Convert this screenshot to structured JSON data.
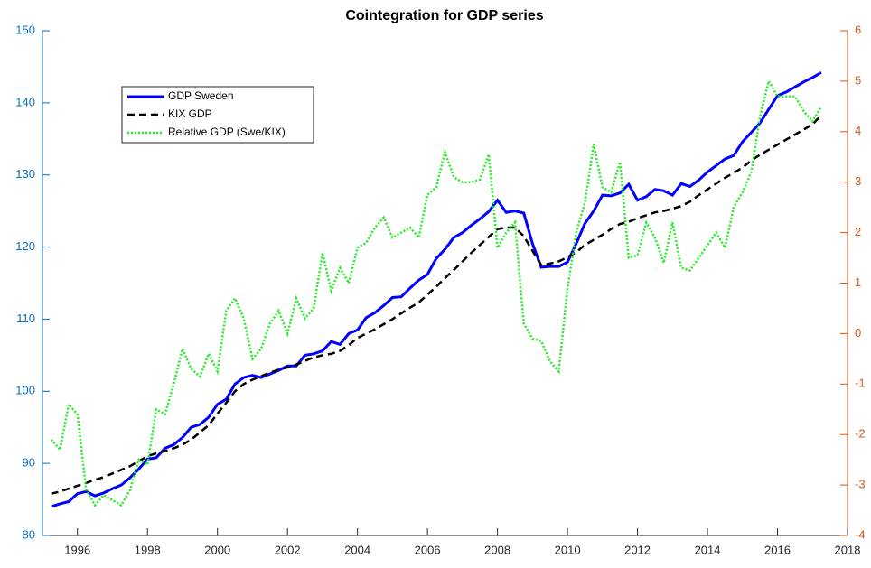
{
  "chart_data": {
    "type": "line",
    "title": "Cointegration for GDP series",
    "x": [
      1995.25,
      1995.5,
      1995.75,
      1996,
      1996.25,
      1996.5,
      1996.75,
      1997,
      1997.25,
      1997.5,
      1997.75,
      1998,
      1998.25,
      1998.5,
      1998.75,
      1999,
      1999.25,
      1999.5,
      1999.75,
      2000,
      2000.25,
      2000.5,
      2000.75,
      2001,
      2001.25,
      2001.5,
      2001.75,
      2002,
      2002.25,
      2002.5,
      2002.75,
      2003,
      2003.25,
      2003.5,
      2003.75,
      2004,
      2004.25,
      2004.5,
      2004.75,
      2005,
      2005.25,
      2005.5,
      2005.75,
      2006,
      2006.25,
      2006.5,
      2006.75,
      2007,
      2007.25,
      2007.5,
      2007.75,
      2008,
      2008.25,
      2008.5,
      2008.75,
      2009,
      2009.25,
      2009.5,
      2009.75,
      2010,
      2010.25,
      2010.5,
      2010.75,
      2011,
      2011.25,
      2011.5,
      2011.75,
      2012,
      2012.25,
      2012.5,
      2012.75,
      2013,
      2013.25,
      2013.5,
      2013.75,
      2014,
      2014.25,
      2014.5,
      2014.75,
      2015,
      2015.25,
      2015.5,
      2015.75,
      2016,
      2016.25,
      2016.5,
      2016.75,
      2017,
      2017.25
    ],
    "series": [
      {
        "name": "GDP Sweden",
        "color": "#0000ff",
        "line_style": "solid",
        "axis": "y",
        "values": [
          84.0,
          84.4,
          84.7,
          85.8,
          86.1,
          85.5,
          85.9,
          86.5,
          87.0,
          88.0,
          89.2,
          90.6,
          90.8,
          92.1,
          92.6,
          93.6,
          95.0,
          95.4,
          96.4,
          98.2,
          98.9,
          101.0,
          101.9,
          102.2,
          101.9,
          102.4,
          102.9,
          103.5,
          103.5,
          105.0,
          105.2,
          105.6,
          106.9,
          106.5,
          108.0,
          108.5,
          110.2,
          110.9,
          111.9,
          113.0,
          113.1,
          114.3,
          115.4,
          116.2,
          118.4,
          119.7,
          121.3,
          122.0,
          123.0,
          123.9,
          124.9,
          126.5,
          124.8,
          125.0,
          124.7,
          120.5,
          117.2,
          117.3,
          117.3,
          117.9,
          120.5,
          123.3,
          125.0,
          127.2,
          127.1,
          127.5,
          128.7,
          126.5,
          127.0,
          128.0,
          127.8,
          127.2,
          128.8,
          128.4,
          129.3,
          130.4,
          131.3,
          132.2,
          132.7,
          134.6,
          135.9,
          137.2,
          139.1,
          141.0,
          141.5,
          142.2,
          142.9,
          143.5,
          144.2
        ]
      },
      {
        "name": "KIX GDP",
        "color": "#000000",
        "line_style": "dashed",
        "axis": "y",
        "values": [
          85.8,
          86.1,
          86.5,
          86.9,
          87.3,
          87.7,
          88.1,
          88.6,
          89.1,
          89.6,
          90.3,
          91.0,
          91.4,
          91.7,
          92.1,
          92.6,
          93.3,
          94.3,
          95.3,
          96.9,
          98.4,
          100.0,
          101.0,
          101.6,
          102.1,
          102.6,
          103.0,
          103.3,
          103.7,
          104.2,
          104.7,
          105.0,
          105.2,
          105.6,
          106.4,
          107.4,
          108.0,
          108.6,
          109.3,
          110.0,
          110.8,
          111.6,
          112.3,
          113.4,
          114.5,
          115.7,
          116.8,
          118.0,
          119.2,
          120.3,
          121.4,
          122.5,
          122.7,
          122.7,
          121.5,
          119.5,
          117.5,
          117.7,
          118.0,
          118.6,
          119.3,
          120.3,
          121.0,
          121.7,
          122.5,
          123.2,
          123.5,
          124.0,
          124.4,
          124.8,
          125.0,
          125.3,
          125.7,
          126.3,
          127.2,
          128.0,
          128.8,
          129.6,
          130.3,
          131.0,
          132.0,
          132.8,
          133.5,
          134.2,
          134.9,
          135.6,
          136.3,
          137.0,
          138.3
        ]
      },
      {
        "name": "Relative GDP (Swe/KIX)",
        "color": "#22ee22",
        "line_style": "dotted",
        "axis": "y2",
        "values": [
          -2.1,
          -2.3,
          -1.4,
          -1.6,
          -3.1,
          -3.4,
          -3.2,
          -3.3,
          -3.4,
          -3.1,
          -2.5,
          -2.6,
          -1.5,
          -1.6,
          -1.0,
          -0.3,
          -0.7,
          -0.85,
          -0.4,
          -0.75,
          0.45,
          0.7,
          0.3,
          -0.5,
          -0.3,
          0.2,
          0.45,
          0.0,
          0.7,
          0.3,
          0.5,
          1.6,
          0.85,
          1.3,
          1.0,
          1.7,
          1.8,
          2.1,
          2.3,
          1.9,
          2.0,
          2.1,
          1.9,
          2.75,
          2.9,
          3.6,
          3.1,
          3.0,
          3.0,
          3.05,
          3.55,
          1.7,
          2.0,
          2.2,
          0.2,
          -0.1,
          -0.15,
          -0.55,
          -0.75,
          0.9,
          2.0,
          2.6,
          3.75,
          2.9,
          2.8,
          3.4,
          1.5,
          1.55,
          2.2,
          1.9,
          1.4,
          2.2,
          1.3,
          1.25,
          1.5,
          1.75,
          2.0,
          1.7,
          2.5,
          2.8,
          3.2,
          4.3,
          5.0,
          4.7,
          4.7,
          4.7,
          4.4,
          4.2,
          4.5
        ]
      }
    ],
    "xlim": [
      1995,
      2018
    ],
    "xticks": [
      1996,
      1998,
      2000,
      2002,
      2004,
      2006,
      2008,
      2010,
      2012,
      2014,
      2016,
      2018
    ],
    "ylim": [
      80,
      150
    ],
    "yticks": [
      80,
      90,
      100,
      110,
      120,
      130,
      140,
      150
    ],
    "y_axis_color": "#0072bd",
    "y2lim": [
      -4,
      6
    ],
    "y2ticks": [
      -4,
      -3,
      -2,
      -1,
      0,
      1,
      2,
      3,
      4,
      5,
      6
    ],
    "y2_axis_color": "#d95319",
    "legend": "upper left"
  }
}
